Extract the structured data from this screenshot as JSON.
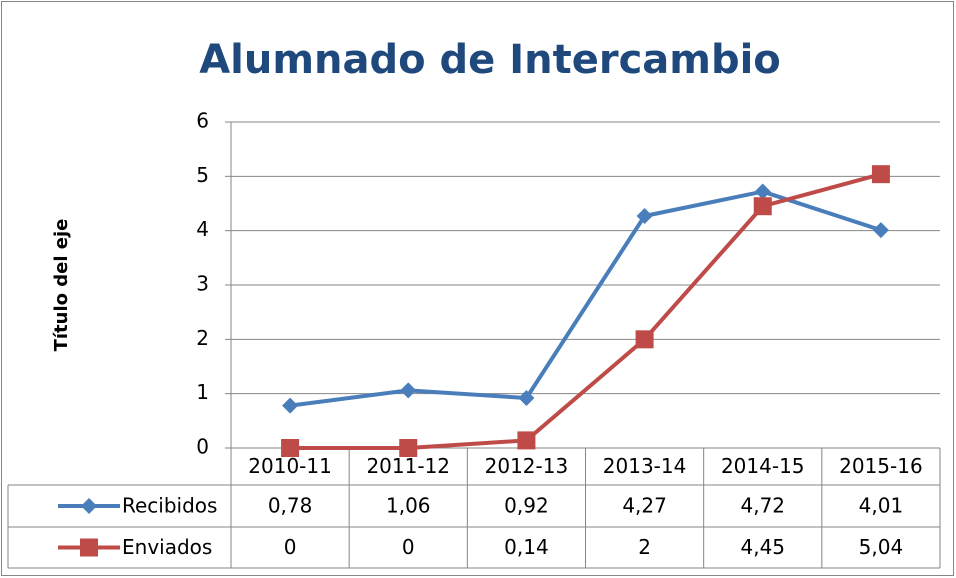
{
  "chart_data": {
    "type": "line",
    "title": "Alumnado de Intercambio",
    "y_label": "Título del eje",
    "categories": [
      "2010-11",
      "2011-12",
      "2012-13",
      "2013-14",
      "2014-15",
      "2015-16"
    ],
    "series": [
      {
        "name": "Recibidos",
        "color": "#4a7ebb",
        "marker": "diamond",
        "values": [
          0.78,
          1.06,
          0.92,
          4.27,
          4.72,
          4.01
        ],
        "value_labels": [
          "0,78",
          "1,06",
          "0,92",
          "4,27",
          "4,72",
          "4,01"
        ]
      },
      {
        "name": "Enviados",
        "color": "#be4b48",
        "marker": "square",
        "values": [
          0,
          0,
          0.14,
          2,
          4.45,
          5.04
        ],
        "value_labels": [
          "0",
          "0",
          "0,14",
          "2",
          "4,45",
          "5,04"
        ]
      }
    ],
    "ylim": [
      0,
      6
    ],
    "yticks": [
      0,
      1,
      2,
      3,
      4,
      5,
      6
    ],
    "grid": true,
    "data_table": true
  }
}
